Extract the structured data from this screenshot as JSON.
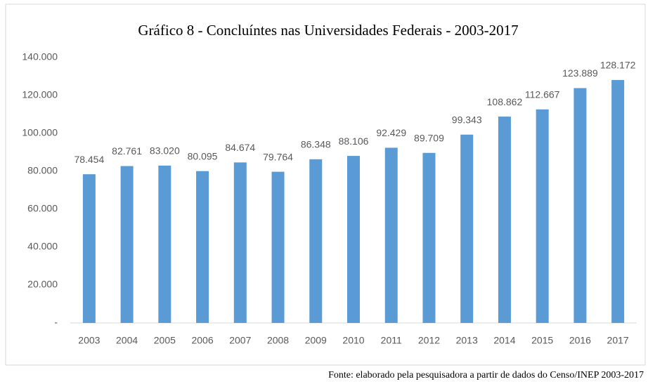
{
  "chart_data": {
    "type": "bar",
    "title": "Gráfico 8 - Concluíntes nas Universidades Federais - 2003-2017",
    "note": "Fonte: elaborado pela pesquisadora a partir de dados do Censo/INEP 2003-2017",
    "categories": [
      "2003",
      "2004",
      "2005",
      "2006",
      "2007",
      "2008",
      "2009",
      "2010",
      "2011",
      "2012",
      "2013",
      "2014",
      "2015",
      "2016",
      "2017"
    ],
    "values": [
      78454,
      82761,
      83020,
      80095,
      84674,
      79764,
      86348,
      88106,
      92429,
      89709,
      99343,
      108862,
      112667,
      123889,
      128172
    ],
    "value_labels": [
      "78.454",
      "82.761",
      "83.020",
      "80.095",
      "84.674",
      "79.764",
      "86.348",
      "88.106",
      "92.429",
      "89.709",
      "99.343",
      "108.862",
      "112.667",
      "123.889",
      "128.172"
    ],
    "color": "#5b9bd5",
    "ylim": [
      0,
      140000
    ],
    "yticks": [
      {
        "value": 0,
        "label": "-"
      },
      {
        "value": 20000,
        "label": "20.000"
      },
      {
        "value": 40000,
        "label": "40.000"
      },
      {
        "value": 60000,
        "label": "60.000"
      },
      {
        "value": 80000,
        "label": "80.000"
      },
      {
        "value": 100000,
        "label": "100.000"
      },
      {
        "value": 120000,
        "label": "120.000"
      },
      {
        "value": 140000,
        "label": "140.000"
      }
    ],
    "grid": false
  }
}
